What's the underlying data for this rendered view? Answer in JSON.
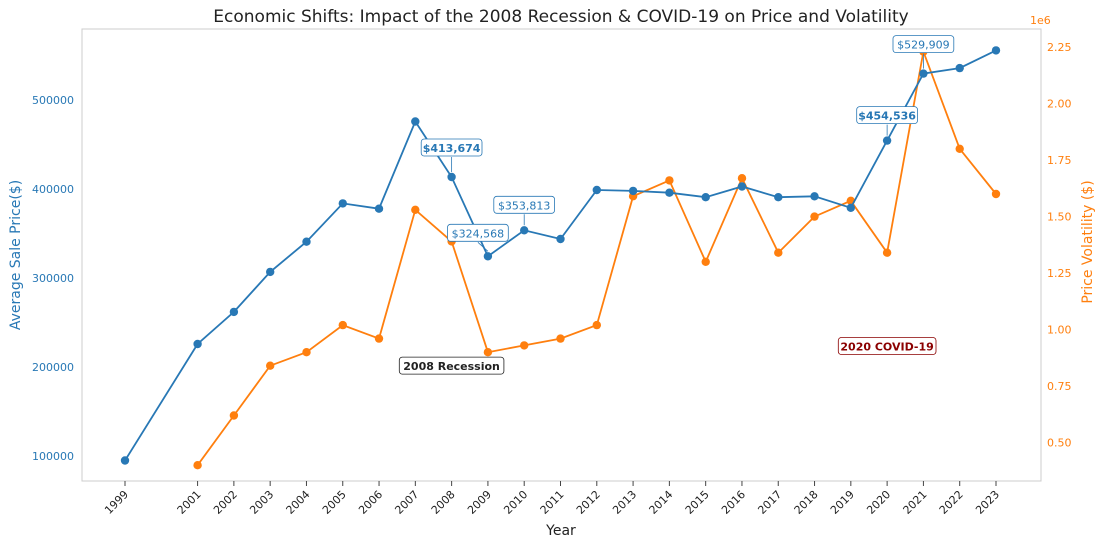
{
  "chart_data": {
    "type": "line",
    "title": "Economic Shifts: Impact of the 2008 Recession & COVID-19 on Price and Volatility",
    "xlabel": "Year",
    "ylabel_left": "Average Sale Price($)",
    "ylabel_right": "Price Volatility ($)",
    "right_axis_multiplier": "1e6",
    "x_ticks": [
      "1999",
      "2001",
      "2002",
      "2003",
      "2004",
      "2005",
      "2006",
      "2007",
      "2008",
      "2009",
      "2010",
      "2011",
      "2012",
      "2013",
      "2014",
      "2015",
      "2016",
      "2017",
      "2018",
      "2019",
      "2020",
      "2021",
      "2022",
      "2023"
    ],
    "y_left_ticks": [
      "100000",
      "200000",
      "300000",
      "400000",
      "500000"
    ],
    "y_right_ticks": [
      "0.50",
      "0.75",
      "1.00",
      "1.25",
      "1.50",
      "1.75",
      "2.00",
      "2.25"
    ],
    "ylim_left": [
      72000,
      580000
    ],
    "ylim_right": [
      0.33,
      2.33
    ],
    "grid": false,
    "colors": {
      "price": "#2878b5",
      "volatility": "#ff7f0e",
      "covid_label": "#8b0000",
      "text": "#222222"
    },
    "series": [
      {
        "axis": "left",
        "color": "#2878b5",
        "x": [
          1999,
          2001,
          2002,
          2003,
          2004,
          2005,
          2006,
          2007,
          2008,
          2009,
          2010,
          2011,
          2012,
          2013,
          2014,
          2015,
          2016,
          2017,
          2018,
          2019,
          2020,
          2021,
          2022,
          2023
        ],
        "values": [
          95000,
          226000,
          262000,
          307000,
          341000,
          384000,
          378000,
          476000,
          413674,
          324568,
          353813,
          344000,
          399000,
          398000,
          396000,
          391000,
          403000,
          391000,
          392000,
          379000,
          454536,
          529909,
          536000,
          556000
        ]
      },
      {
        "axis": "right",
        "color": "#ff7f0e",
        "x": [
          2001,
          2002,
          2003,
          2004,
          2005,
          2006,
          2007,
          2008,
          2009,
          2010,
          2011,
          2012,
          2013,
          2014,
          2015,
          2016,
          2017,
          2018,
          2019,
          2020,
          2021,
          2022,
          2023
        ],
        "values": [
          0.4,
          0.62,
          0.84,
          0.9,
          1.02,
          0.96,
          1.53,
          1.39,
          0.9,
          0.93,
          0.96,
          1.02,
          1.59,
          1.66,
          1.3,
          1.67,
          1.34,
          1.5,
          1.57,
          1.34,
          2.23,
          1.8,
          1.6
        ]
      }
    ],
    "annotations": [
      {
        "text": "$413,674",
        "year": 2008,
        "bold": true
      },
      {
        "text": "$324,568",
        "year": 2009,
        "bold": false
      },
      {
        "text": "$353,813",
        "year": 2010,
        "bold": false
      },
      {
        "text": "$454,536",
        "year": 2020,
        "bold": true
      },
      {
        "text": "$529,909",
        "year": 2021,
        "bold": false
      }
    ],
    "event_labels": [
      {
        "text": "2008 Recession",
        "year": 2008.0,
        "price": 200000
      },
      {
        "text": "2020 COVID-19",
        "year": 2020.0,
        "price": 222000
      }
    ]
  }
}
